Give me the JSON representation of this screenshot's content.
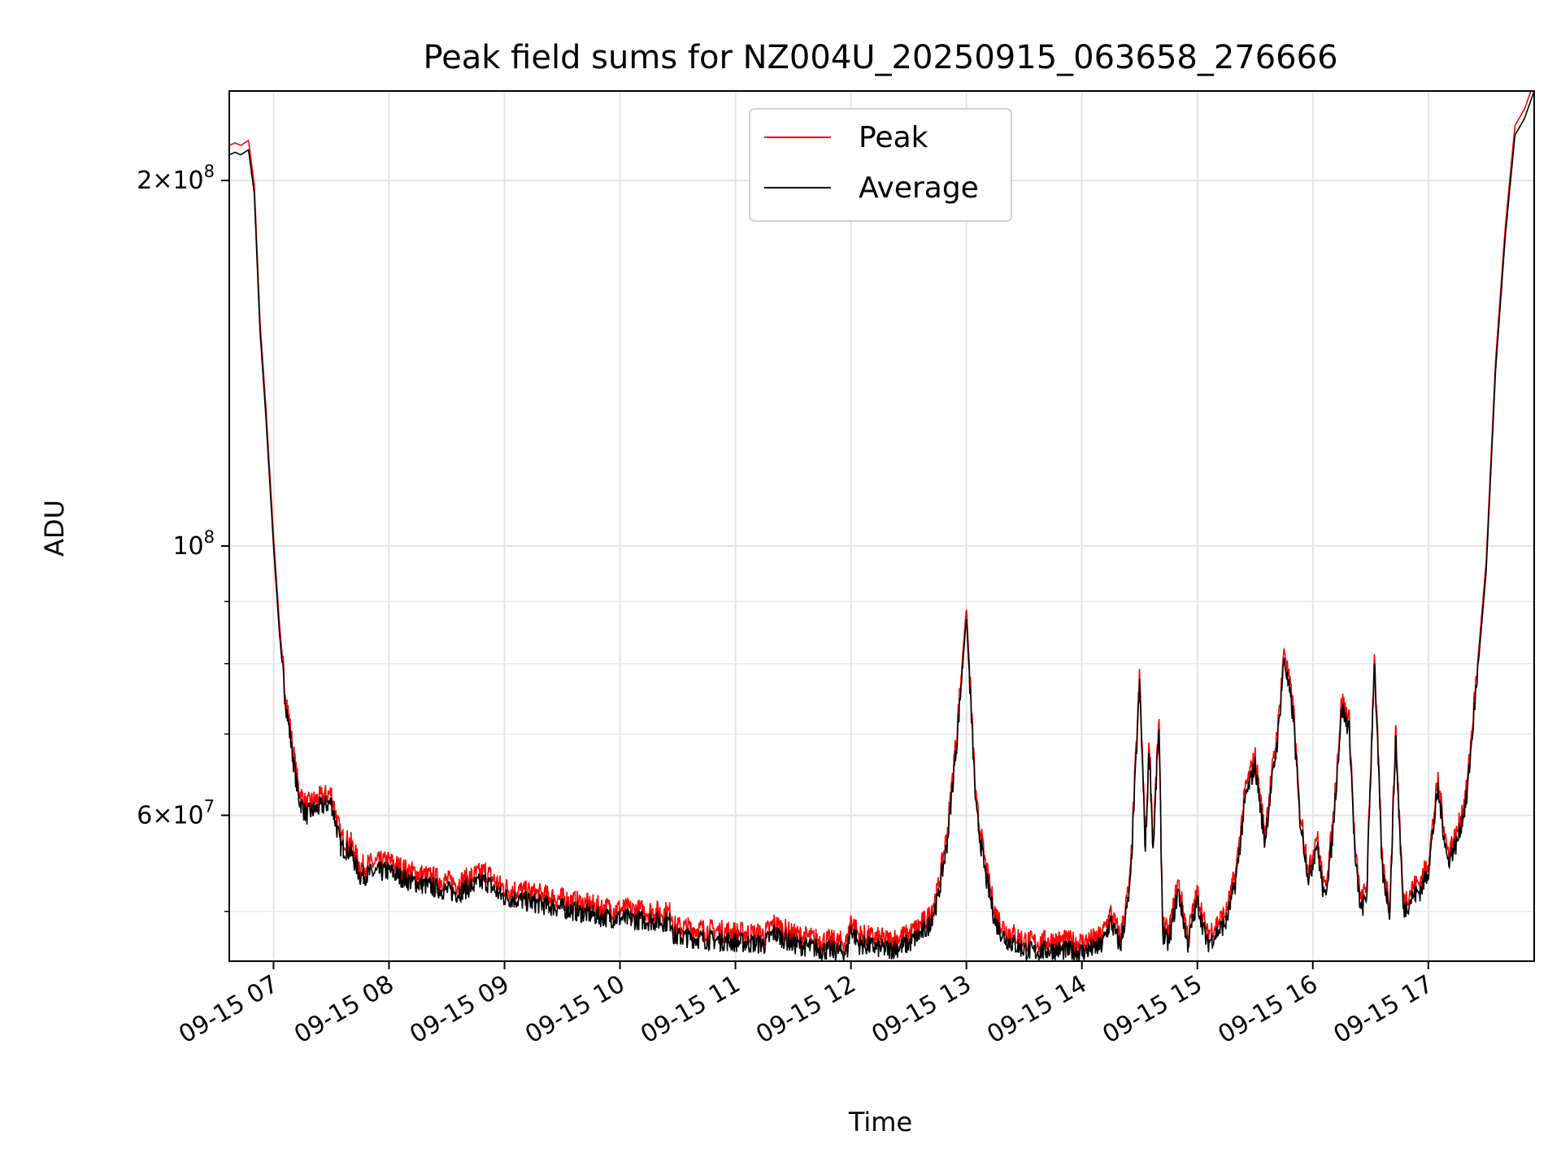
{
  "chart_data": {
    "type": "line",
    "title": "Peak field sums for NZ004U_20250915_063658_276666",
    "xlabel": "Time",
    "ylabel": "ADU",
    "yscale": "log",
    "grid": true,
    "legend_position": "top-center",
    "xlim": [
      "2025-09-15 06:37",
      "2025-09-15 17:55"
    ],
    "ylim": [
      45500000,
      237000000
    ],
    "x_ticks": [
      "2025-09-15 07:00",
      "2025-09-15 08:00",
      "2025-09-15 09:00",
      "2025-09-15 10:00",
      "2025-09-15 11:00",
      "2025-09-15 12:00",
      "2025-09-15 13:00",
      "2025-09-15 14:00",
      "2025-09-15 15:00",
      "2025-09-15 16:00",
      "2025-09-15 17:00"
    ],
    "x_tick_labels": [
      "09-15 07",
      "09-15 08",
      "09-15 09",
      "09-15 10",
      "09-15 11",
      "09-15 12",
      "09-15 13",
      "09-15 14",
      "09-15 15",
      "09-15 16",
      "09-15 17"
    ],
    "y_major_ticks": [
      {
        "value": 200000000,
        "mant": "2",
        "exp": "8"
      },
      {
        "value": 100000000,
        "mant": "",
        "exp": "8"
      },
      {
        "value": 60000000,
        "mant": "6",
        "exp": "7"
      }
    ],
    "y_minor_ticks": [
      50000000,
      70000000,
      80000000,
      90000000
    ],
    "series": [
      {
        "name": "Peak",
        "color": "#ff0000",
        "offset_ratio": 1.018
      },
      {
        "name": "Average",
        "color": "#000000",
        "x": [
          "2025-09-15 06:37",
          "2025-09-15 06:40",
          "2025-09-15 06:43",
          "2025-09-15 06:47",
          "2025-09-15 06:50",
          "2025-09-15 06:53",
          "2025-09-15 06:56",
          "2025-09-15 07:00",
          "2025-09-15 07:03",
          "2025-09-15 07:06",
          "2025-09-15 07:10",
          "2025-09-15 07:13",
          "2025-09-15 07:17",
          "2025-09-15 07:20",
          "2025-09-15 07:25",
          "2025-09-15 07:30",
          "2025-09-15 07:35",
          "2025-09-15 07:40",
          "2025-09-15 07:45",
          "2025-09-15 07:50",
          "2025-09-15 08:00",
          "2025-09-15 08:10",
          "2025-09-15 08:20",
          "2025-09-15 08:35",
          "2025-09-15 08:50",
          "2025-09-15 08:58",
          "2025-09-15 09:10",
          "2025-09-15 09:30",
          "2025-09-15 09:50",
          "2025-09-15 10:10",
          "2025-09-15 10:27",
          "2025-09-15 10:28",
          "2025-09-15 10:40",
          "2025-09-15 11:00",
          "2025-09-15 11:15",
          "2025-09-15 11:20",
          "2025-09-15 11:30",
          "2025-09-15 11:45",
          "2025-09-15 11:58",
          "2025-09-15 12:00",
          "2025-09-15 12:04",
          "2025-09-15 12:10",
          "2025-09-15 12:20",
          "2025-09-15 12:30",
          "2025-09-15 12:40",
          "2025-09-15 12:45",
          "2025-09-15 12:50",
          "2025-09-15 12:55",
          "2025-09-15 13:00",
          "2025-09-15 13:05",
          "2025-09-15 13:10",
          "2025-09-15 13:15",
          "2025-09-15 13:20",
          "2025-09-15 13:25",
          "2025-09-15 13:30",
          "2025-09-15 13:35",
          "2025-09-15 13:45",
          "2025-09-15 14:00",
          "2025-09-15 14:10",
          "2025-09-15 14:15",
          "2025-09-15 14:20",
          "2025-09-15 14:25",
          "2025-09-15 14:30",
          "2025-09-15 14:33",
          "2025-09-15 14:35",
          "2025-09-15 14:37",
          "2025-09-15 14:40",
          "2025-09-15 14:42",
          "2025-09-15 14:45",
          "2025-09-15 14:50",
          "2025-09-15 14:55",
          "2025-09-15 15:00",
          "2025-09-15 15:05",
          "2025-09-15 15:10",
          "2025-09-15 15:15",
          "2025-09-15 15:20",
          "2025-09-15 15:25",
          "2025-09-15 15:30",
          "2025-09-15 15:35",
          "2025-09-15 15:38",
          "2025-09-15 15:42",
          "2025-09-15 15:45",
          "2025-09-15 15:50",
          "2025-09-15 15:53",
          "2025-09-15 15:58",
          "2025-09-15 16:02",
          "2025-09-15 16:06",
          "2025-09-15 16:10",
          "2025-09-15 16:15",
          "2025-09-15 16:19",
          "2025-09-15 16:22",
          "2025-09-15 16:25",
          "2025-09-15 16:28",
          "2025-09-15 16:32",
          "2025-09-15 16:36",
          "2025-09-15 16:40",
          "2025-09-15 16:43",
          "2025-09-15 16:47",
          "2025-09-15 16:52",
          "2025-09-15 16:56",
          "2025-09-15 17:00",
          "2025-09-15 17:05",
          "2025-09-15 17:10",
          "2025-09-15 17:15",
          "2025-09-15 17:20",
          "2025-09-15 17:30",
          "2025-09-15 17:35",
          "2025-09-15 17:40",
          "2025-09-15 17:45",
          "2025-09-15 17:50",
          "2025-09-15 17:55"
        ],
        "y": [
          210000000,
          211000000,
          210000000,
          212000000,
          195000000,
          150000000,
          128000000,
          100000000,
          85000000,
          75000000,
          67000000,
          62000000,
          60000000,
          60500000,
          61000000,
          61500000,
          56500000,
          56000000,
          53500000,
          53700000,
          54000000,
          53000000,
          52500000,
          51800000,
          53000000,
          51500000,
          51000000,
          50300000,
          49500000,
          49200000,
          49000000,
          47700000,
          47500000,
          47200000,
          47000000,
          48000000,
          47000000,
          46500000,
          46300000,
          48500000,
          47000000,
          46800000,
          46500000,
          47000000,
          48500000,
          51000000,
          57000000,
          69000000,
          87500000,
          60500000,
          53500000,
          49000000,
          47500000,
          47000000,
          46500000,
          46300000,
          46500000,
          46300000,
          46800000,
          49000000,
          46800000,
          52000000,
          77000000,
          56000000,
          68500000,
          56000000,
          71000000,
          48000000,
          47000000,
          52000000,
          47000000,
          51000000,
          47000000,
          48000000,
          49000000,
          53000000,
          62000000,
          66000000,
          57000000,
          62500000,
          70000000,
          81000000,
          72000000,
          60000000,
          53000000,
          57000000,
          51000000,
          57000000,
          73500000,
          70500000,
          55000000,
          50000000,
          51500000,
          80500000,
          54000000,
          50000000,
          69500000,
          50000000,
          51500000,
          52000000,
          54000000,
          63000000,
          55000000,
          57000000,
          62000000,
          95000000,
          140000000,
          180000000,
          218000000,
          225000000,
          237000000
        ]
      }
    ]
  }
}
